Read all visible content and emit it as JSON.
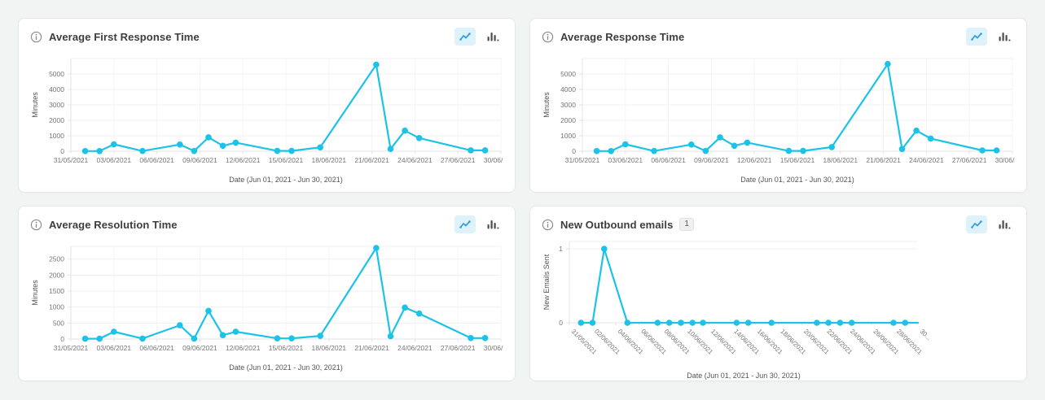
{
  "page": {
    "background": "#f2f3f3",
    "panel_background": "#ffffff"
  },
  "colors": {
    "line": "#1cc3e8",
    "marker": "#1cc3e8",
    "selected_view_bg": "#def2fb",
    "view_icon_blue": "#3b9fd8",
    "bar_icon_gray": "#4d4d4d",
    "grid": "#f0f0f1",
    "axis_line": "#e2e3e4",
    "tick_text": "#767676",
    "axis_label_text": "#555555",
    "title_text": "#3d3d3d"
  },
  "ui": {
    "view_toggle": {
      "options": [
        "line-chart-view",
        "bar-chart-view"
      ],
      "selected": "line-chart-view"
    }
  },
  "chart_data": [
    {
      "type": "line",
      "title": "Average First Response Time",
      "ylabel": "Minutes",
      "xlabel": "Date (Jun 01, 2021 - Jun 30, 2021)",
      "legend": "none",
      "grid": true,
      "ylim": [
        0,
        6000
      ],
      "xlim": [
        0,
        30
      ],
      "y_ticks": [
        0,
        1000,
        2000,
        3000,
        4000,
        5000
      ],
      "x_tick_days": [
        0,
        3,
        6,
        9,
        12,
        15,
        18,
        21,
        24,
        27,
        30
      ],
      "x_tick_labels": [
        "31/05/2021",
        "03/06/2021",
        "06/06/2021",
        "09/06/2021",
        "12/06/2021",
        "15/06/2021",
        "18/06/2021",
        "21/06/2021",
        "24/06/2021",
        "27/06/2021",
        "30/06/2021"
      ],
      "x_tick_rotated": false,
      "x_unit": "day_offset_from_31/05/2021",
      "points_day_value": [
        [
          1,
          10
        ],
        [
          2,
          10
        ],
        [
          3,
          450
        ],
        [
          5,
          15
        ],
        [
          7.6,
          430
        ],
        [
          8.6,
          15
        ],
        [
          9.6,
          900
        ],
        [
          10.6,
          350
        ],
        [
          11.5,
          560
        ],
        [
          14.4,
          20
        ],
        [
          15.4,
          20
        ],
        [
          17.4,
          250
        ],
        [
          21.3,
          5600
        ],
        [
          22.3,
          150
        ],
        [
          23.3,
          1330
        ],
        [
          24.3,
          850
        ],
        [
          27.9,
          60
        ],
        [
          28.9,
          60
        ]
      ]
    },
    {
      "type": "line",
      "title": "Average Response Time",
      "ylabel": "Minutes",
      "xlabel": "Date (Jun 01, 2021 - Jun 30, 2021)",
      "legend": "none",
      "grid": true,
      "ylim": [
        0,
        6000
      ],
      "xlim": [
        0,
        30
      ],
      "y_ticks": [
        0,
        1000,
        2000,
        3000,
        4000,
        5000
      ],
      "x_tick_days": [
        0,
        3,
        6,
        9,
        12,
        15,
        18,
        21,
        24,
        27,
        30
      ],
      "x_tick_labels": [
        "31/05/2021",
        "03/06/2021",
        "06/06/2021",
        "09/06/2021",
        "12/06/2021",
        "15/06/2021",
        "18/06/2021",
        "21/06/2021",
        "24/06/2021",
        "27/06/2021",
        "30/06/2021"
      ],
      "x_tick_rotated": false,
      "x_unit": "day_offset_from_31/05/2021",
      "points_day_value": [
        [
          1,
          10
        ],
        [
          2,
          10
        ],
        [
          3,
          450
        ],
        [
          5,
          15
        ],
        [
          7.6,
          430
        ],
        [
          8.6,
          15
        ],
        [
          9.6,
          900
        ],
        [
          10.6,
          350
        ],
        [
          11.5,
          560
        ],
        [
          14.4,
          20
        ],
        [
          15.4,
          20
        ],
        [
          17.4,
          270
        ],
        [
          21.3,
          5650
        ],
        [
          22.3,
          140
        ],
        [
          23.3,
          1330
        ],
        [
          24.3,
          820
        ],
        [
          27.9,
          50
        ],
        [
          28.9,
          50
        ]
      ]
    },
    {
      "type": "line",
      "title": "Average Resolution Time",
      "ylabel": "Minutes",
      "xlabel": "Date (Jun 01, 2021 - Jun 30, 2021)",
      "legend": "none",
      "grid": true,
      "ylim": [
        0,
        2900
      ],
      "xlim": [
        0,
        30
      ],
      "y_ticks": [
        0,
        500,
        1000,
        1500,
        2000,
        2500
      ],
      "x_tick_days": [
        0,
        3,
        6,
        9,
        12,
        15,
        18,
        21,
        24,
        27,
        30
      ],
      "x_tick_labels": [
        "31/05/2021",
        "03/06/2021",
        "06/06/2021",
        "09/06/2021",
        "12/06/2021",
        "15/06/2021",
        "18/06/2021",
        "21/06/2021",
        "24/06/2021",
        "27/06/2021",
        "30/06/2021"
      ],
      "x_tick_rotated": false,
      "x_unit": "day_offset_from_31/05/2021",
      "points_day_value": [
        [
          1,
          10
        ],
        [
          2,
          10
        ],
        [
          3,
          230
        ],
        [
          5,
          15
        ],
        [
          7.6,
          430
        ],
        [
          8.6,
          15
        ],
        [
          9.6,
          880
        ],
        [
          10.6,
          120
        ],
        [
          11.5,
          230
        ],
        [
          14.4,
          20
        ],
        [
          15.4,
          20
        ],
        [
          17.4,
          100
        ],
        [
          21.3,
          2850
        ],
        [
          22.3,
          90
        ],
        [
          23.3,
          985
        ],
        [
          24.3,
          795
        ],
        [
          27.9,
          30
        ],
        [
          28.9,
          30
        ]
      ]
    },
    {
      "type": "line",
      "title": "New Outbound emails",
      "count_badge": "1",
      "ylabel": "New Emails Sent",
      "xlabel": "Date (Jun 01, 2021 - Jun 30, 2021)",
      "legend": "none",
      "grid": true,
      "ylim": [
        0,
        1.1
      ],
      "xlim": [
        0,
        30
      ],
      "y_ticks": [
        0,
        1
      ],
      "x_tick_days": [
        0,
        2,
        4,
        6,
        8,
        10,
        12,
        14,
        16,
        18,
        20,
        22,
        24,
        26,
        28,
        30
      ],
      "x_tick_labels": [
        "31/05/2021",
        "02/06/2021",
        "04/06/2021",
        "06/06/2021",
        "08/06/2021",
        "10/06/2021",
        "12/06/2021",
        "14/06/2021",
        "16/06/2021",
        "18/06/2021",
        "20/06/2021",
        "22/06/2021",
        "24/06/2021",
        "26/06/2021",
        "28/06/2021",
        "30..."
      ],
      "x_tick_rotated": true,
      "x_unit": "day_offset_from_31/05/2021",
      "line_extends_to_right_edge": true,
      "points_day_value": [
        [
          1,
          0
        ],
        [
          2,
          0
        ],
        [
          3,
          1
        ],
        [
          5,
          0
        ],
        [
          7.6,
          0
        ],
        [
          8.6,
          0
        ],
        [
          9.6,
          0
        ],
        [
          10.6,
          0
        ],
        [
          11.5,
          0
        ],
        [
          14.4,
          0
        ],
        [
          15.4,
          0
        ],
        [
          17.4,
          0
        ],
        [
          21.3,
          0
        ],
        [
          22.3,
          0
        ],
        [
          23.3,
          0
        ],
        [
          24.3,
          0
        ],
        [
          27.9,
          0
        ],
        [
          28.9,
          0
        ]
      ]
    }
  ]
}
